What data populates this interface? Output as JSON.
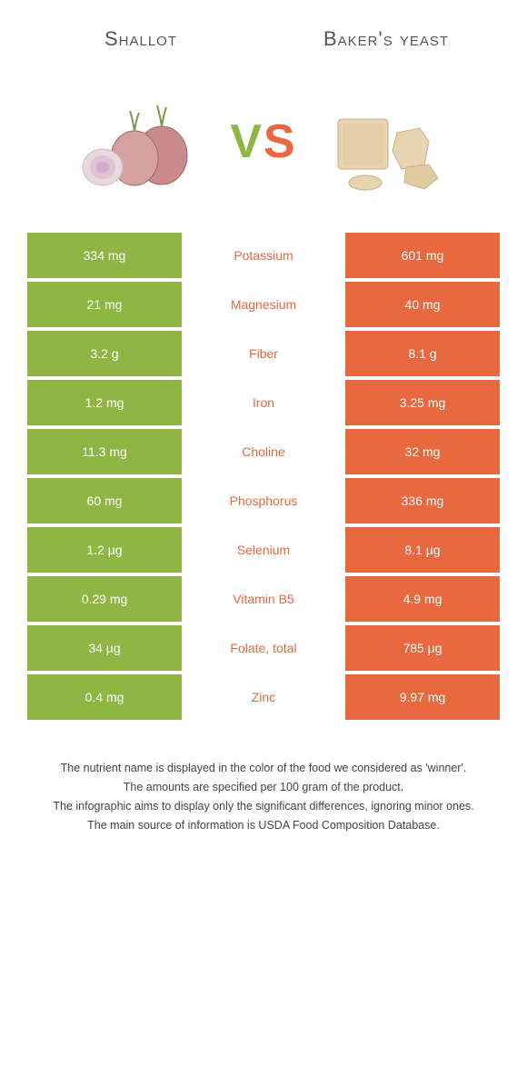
{
  "colors": {
    "left_color": "#8fb644",
    "right_color": "#e8683f",
    "background": "#ffffff",
    "text": "#333333"
  },
  "header": {
    "left_title": "Shallot",
    "right_title": "Baker's yeast",
    "vs_label_v": "V",
    "vs_label_s": "S"
  },
  "rows": [
    {
      "label": "Potassium",
      "left": "334 mg",
      "right": "601 mg",
      "winner": "right"
    },
    {
      "label": "Magnesium",
      "left": "21 mg",
      "right": "40 mg",
      "winner": "right"
    },
    {
      "label": "Fiber",
      "left": "3.2 g",
      "right": "8.1 g",
      "winner": "right"
    },
    {
      "label": "Iron",
      "left": "1.2 mg",
      "right": "3.25 mg",
      "winner": "right"
    },
    {
      "label": "Choline",
      "left": "11.3 mg",
      "right": "32 mg",
      "winner": "right"
    },
    {
      "label": "Phosphorus",
      "left": "60 mg",
      "right": "336 mg",
      "winner": "right"
    },
    {
      "label": "Selenium",
      "left": "1.2 µg",
      "right": "8.1 µg",
      "winner": "right"
    },
    {
      "label": "Vitamin B5",
      "left": "0.29 mg",
      "right": "4.9 mg",
      "winner": "right"
    },
    {
      "label": "Folate, total",
      "left": "34 µg",
      "right": "785 µg",
      "winner": "right"
    },
    {
      "label": "Zinc",
      "left": "0.4 mg",
      "right": "9.97 mg",
      "winner": "right"
    }
  ],
  "footer": {
    "line1": "The nutrient name is displayed in the color of the food we considered as 'winner'.",
    "line2": "The amounts are specified per 100 gram of the product.",
    "line3": "The infographic aims to display only the significant differences, ignoring minor ones.",
    "line4": "The main source of information is USDA Food Composition Database."
  }
}
